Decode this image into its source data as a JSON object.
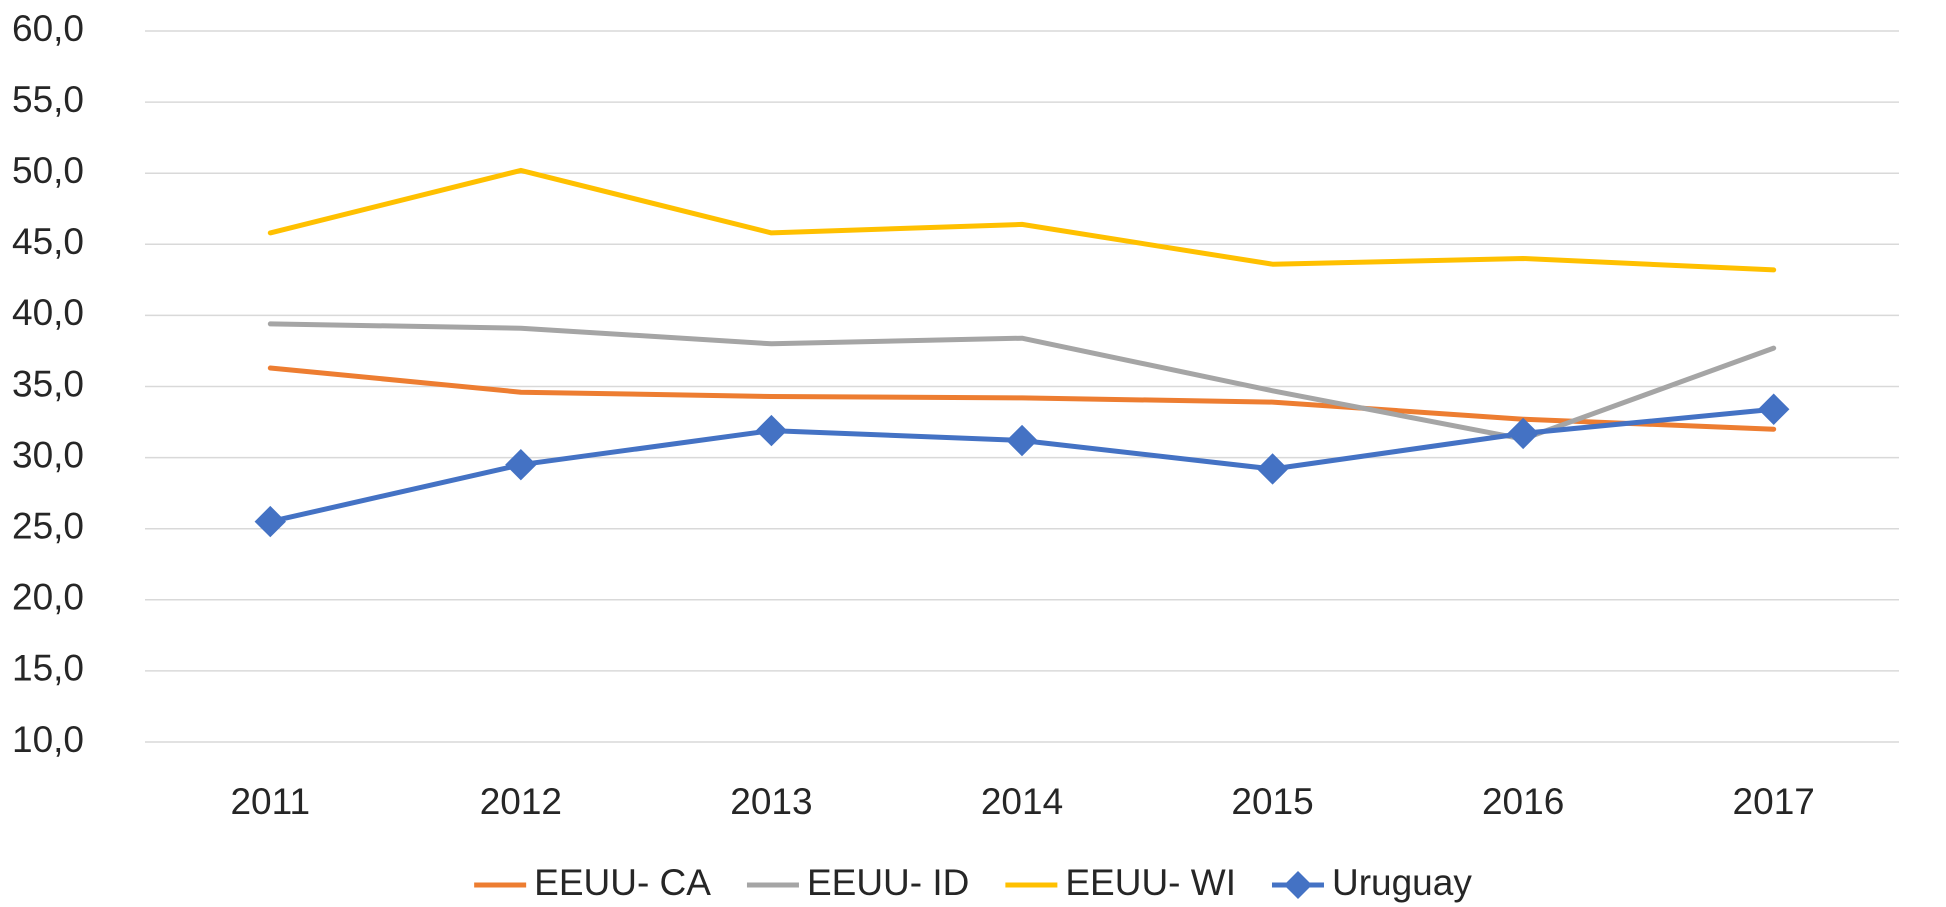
{
  "chart_data": {
    "type": "line",
    "categories": [
      "2011",
      "2012",
      "2013",
      "2014",
      "2015",
      "2016",
      "2017"
    ],
    "series": [
      {
        "name": "EEUU- CA",
        "color": "#ed7d31",
        "values": [
          36.3,
          34.6,
          34.3,
          34.2,
          33.9,
          32.7,
          32.0
        ]
      },
      {
        "name": "EEUU- ID",
        "color": "#a5a5a5",
        "values": [
          39.4,
          39.1,
          38.0,
          38.4,
          34.7,
          31.3,
          37.7
        ]
      },
      {
        "name": "EEUU- WI",
        "color": "#ffc000",
        "values": [
          45.8,
          50.2,
          45.8,
          46.4,
          43.6,
          44.0,
          43.2
        ]
      },
      {
        "name": "Uruguay",
        "color": "#4472c4",
        "marker": "diamond",
        "values": [
          25.5,
          29.5,
          31.9,
          31.2,
          29.2,
          31.7,
          33.4
        ]
      }
    ],
    "ylim": [
      10,
      60
    ],
    "yticks": [
      {
        "value": 10,
        "label": "10,0"
      },
      {
        "value": 15,
        "label": "15,0"
      },
      {
        "value": 20,
        "label": "20,0"
      },
      {
        "value": 25,
        "label": "25,0"
      },
      {
        "value": 30,
        "label": "30,0"
      },
      {
        "value": 35,
        "label": "35,0"
      },
      {
        "value": 40,
        "label": "40,0"
      },
      {
        "value": 45,
        "label": "45,0"
      },
      {
        "value": 50,
        "label": "50,0"
      },
      {
        "value": 55,
        "label": "55,0"
      },
      {
        "value": 60,
        "label": "60,0"
      }
    ],
    "grid": true,
    "legend": "bottom"
  }
}
